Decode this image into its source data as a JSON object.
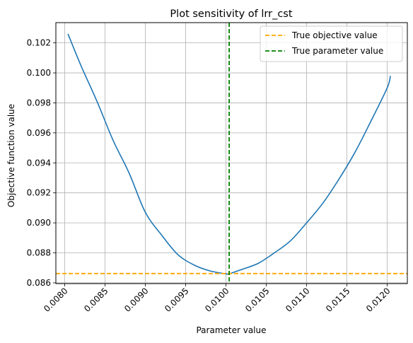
{
  "chart_data": {
    "type": "line",
    "title": "Plot sensitivity of lrr_cst",
    "xlabel": "Parameter value",
    "ylabel": "Objective function value",
    "xlim": [
      0.00789,
      0.01225
    ],
    "ylim": [
      0.08595,
      0.10335
    ],
    "x_ticks": [
      0.008,
      0.0085,
      0.009,
      0.0095,
      0.01,
      0.0105,
      0.011,
      0.0115,
      0.012
    ],
    "x_tick_labels": [
      "0.0080",
      "0.0085",
      "0.0090",
      "0.0095",
      "0.0100",
      "0.0105",
      "0.0110",
      "0.0115",
      "0.0120"
    ],
    "y_ticks": [
      0.086,
      0.088,
      0.09,
      0.092,
      0.094,
      0.096,
      0.098,
      0.1,
      0.102
    ],
    "y_tick_labels": [
      "0.086",
      "0.088",
      "0.090",
      "0.092",
      "0.094",
      "0.096",
      "0.098",
      "0.100",
      "0.102"
    ],
    "grid": true,
    "legend_position": "top-right",
    "series": [
      {
        "x": [
          0.00804,
          0.0082,
          0.0084,
          0.0086,
          0.0088,
          0.009,
          0.0092,
          0.0094,
          0.0096,
          0.0098,
          0.01,
          0.01004,
          0.0102,
          0.0104,
          0.0106,
          0.0108,
          0.011,
          0.0112,
          0.0114,
          0.0116,
          0.0118,
          0.012,
          0.01204
        ],
        "y": [
          0.1026,
          0.1005,
          0.0981,
          0.0955,
          0.0933,
          0.0907,
          0.0892,
          0.0879,
          0.0872,
          0.0868,
          0.0866,
          0.0866,
          0.0869,
          0.0873,
          0.088,
          0.0888,
          0.09,
          0.0913,
          0.0929,
          0.0947,
          0.0968,
          0.099,
          0.0998
        ],
        "color": "#1f77b4"
      }
    ],
    "reference_lines": [
      {
        "label": "True objective value",
        "orientation": "horizontal",
        "value": 0.08662,
        "color": "#ffa500",
        "dash": true
      },
      {
        "label": "True parameter value",
        "orientation": "vertical",
        "value": 0.01004,
        "color": "#008000",
        "dash": true
      }
    ]
  }
}
